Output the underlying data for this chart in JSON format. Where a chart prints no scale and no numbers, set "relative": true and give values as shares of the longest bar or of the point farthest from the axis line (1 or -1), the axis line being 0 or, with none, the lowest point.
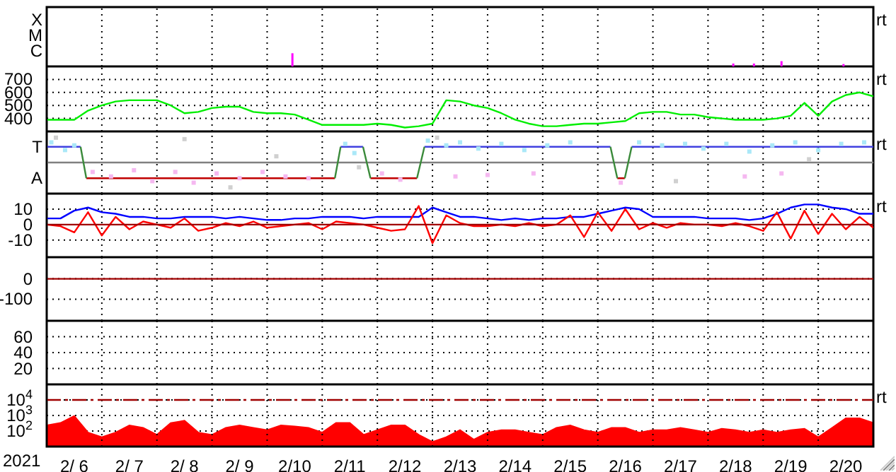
{
  "chart_data": [
    {
      "type": "bar",
      "relative": true,
      "xlim": [
        "2021-02-06T00:00",
        "2021-02-21T00:00"
      ],
      "xticks": [
        {
          "value": "2021-02-07T00:00",
          "label": null
        },
        {
          "value": "2021-02-08T00:00",
          "label": null
        },
        {
          "value": "2021-02-09T00:00",
          "label": null
        },
        {
          "value": "2021-02-10T00:00",
          "label": null
        },
        {
          "value": "2021-02-11T00:00",
          "label": null
        },
        {
          "value": "2021-02-12T00:00",
          "label": null
        },
        {
          "value": "2021-02-13T00:00",
          "label": null
        },
        {
          "value": "2021-02-14T00:00",
          "label": null
        },
        {
          "value": "2021-02-15T00:00",
          "label": null
        },
        {
          "value": "2021-02-16T00:00",
          "label": null
        },
        {
          "value": "2021-02-17T00:00",
          "label": null
        },
        {
          "value": "2021-02-18T00:00",
          "label": null
        },
        {
          "value": "2021-02-19T00:00",
          "label": null
        },
        {
          "value": "2021-02-20T00:00",
          "label": null
        }
      ],
      "grid": "x",
      "tick_labels": "y",
      "annotations": [
        "rt",
        "X",
        "M",
        "C"
      ],
      "series": [
        {
          "color": "#ff00ff",
          "x": [
            "2021-02-10T11:00",
            "2021-02-18T11:00",
            "2021-02-18T20:00",
            "2021-02-19T08:00",
            "2021-02-20T11:00"
          ],
          "values": [
            1,
            0.22,
            0.22,
            0.4,
            0.18
          ]
        }
      ]
    },
    {
      "type": "line",
      "ylim": [
        300,
        800
      ],
      "yticks": [
        400,
        500,
        600,
        700
      ],
      "xlim": [
        "2021-02-06T00:00",
        "2021-02-21T00:00"
      ],
      "xticks": [
        {
          "value": "2021-02-07T00:00",
          "label": null
        },
        {
          "value": "2021-02-08T00:00",
          "label": null
        },
        {
          "value": "2021-02-09T00:00",
          "label": null
        },
        {
          "value": "2021-02-10T00:00",
          "label": null
        },
        {
          "value": "2021-02-11T00:00",
          "label": null
        },
        {
          "value": "2021-02-12T00:00",
          "label": null
        },
        {
          "value": "2021-02-13T00:00",
          "label": null
        },
        {
          "value": "2021-02-14T00:00",
          "label": null
        },
        {
          "value": "2021-02-15T00:00",
          "label": null
        },
        {
          "value": "2021-02-16T00:00",
          "label": null
        },
        {
          "value": "2021-02-17T00:00",
          "label": null
        },
        {
          "value": "2021-02-18T00:00",
          "label": null
        },
        {
          "value": "2021-02-19T00:00",
          "label": null
        },
        {
          "value": "2021-02-20T00:00",
          "label": null
        }
      ],
      "grid": true,
      "tick_labels": "y",
      "annotations": [
        "rt"
      ],
      "x": [
        "2021-02-06T00:00",
        "2021-02-06T06:00",
        "2021-02-06T12:00",
        "2021-02-06T18:00",
        "2021-02-07T00:00",
        "2021-02-07T06:00",
        "2021-02-07T12:00",
        "2021-02-07T18:00",
        "2021-02-08T00:00",
        "2021-02-08T06:00",
        "2021-02-08T12:00",
        "2021-02-08T18:00",
        "2021-02-09T00:00",
        "2021-02-09T06:00",
        "2021-02-09T12:00",
        "2021-02-09T18:00",
        "2021-02-10T00:00",
        "2021-02-10T06:00",
        "2021-02-10T12:00",
        "2021-02-10T18:00",
        "2021-02-11T00:00",
        "2021-02-11T06:00",
        "2021-02-11T12:00",
        "2021-02-11T18:00",
        "2021-02-12T00:00",
        "2021-02-12T06:00",
        "2021-02-12T12:00",
        "2021-02-12T18:00",
        "2021-02-13T00:00",
        "2021-02-13T06:00",
        "2021-02-13T12:00",
        "2021-02-13T18:00",
        "2021-02-14T00:00",
        "2021-02-14T06:00",
        "2021-02-14T12:00",
        "2021-02-14T18:00",
        "2021-02-15T00:00",
        "2021-02-15T06:00",
        "2021-02-15T12:00",
        "2021-02-15T18:00",
        "2021-02-16T00:00",
        "2021-02-16T06:00",
        "2021-02-16T12:00",
        "2021-02-16T18:00",
        "2021-02-17T00:00",
        "2021-02-17T06:00",
        "2021-02-17T12:00",
        "2021-02-17T18:00",
        "2021-02-18T00:00",
        "2021-02-18T06:00",
        "2021-02-18T12:00",
        "2021-02-18T18:00",
        "2021-02-19T00:00",
        "2021-02-19T06:00",
        "2021-02-19T12:00",
        "2021-02-19T18:00",
        "2021-02-20T00:00",
        "2021-02-20T06:00",
        "2021-02-20T12:00",
        "2021-02-20T18:00",
        "2021-02-21T00:00"
      ],
      "series": [
        {
          "color": "#00ee00",
          "values": [
            390,
            390,
            390,
            460,
            500,
            530,
            540,
            540,
            540,
            500,
            440,
            450,
            480,
            490,
            490,
            450,
            440,
            440,
            430,
            390,
            350,
            350,
            350,
            350,
            360,
            350,
            330,
            340,
            360,
            540,
            530,
            500,
            480,
            440,
            390,
            360,
            340,
            340,
            350,
            360,
            360,
            370,
            380,
            440,
            450,
            450,
            430,
            430,
            410,
            400,
            390,
            390,
            390,
            400,
            420,
            520,
            420,
            530,
            580,
            600,
            570
          ]
        }
      ]
    },
    {
      "type": "line",
      "relative": true,
      "xlim": [
        "2021-02-06T00:00",
        "2021-02-21T00:00"
      ],
      "xticks": [
        {
          "value": "2021-02-07T00:00",
          "label": null
        },
        {
          "value": "2021-02-08T00:00",
          "label": null
        },
        {
          "value": "2021-02-09T00:00",
          "label": null
        },
        {
          "value": "2021-02-10T00:00",
          "label": null
        },
        {
          "value": "2021-02-11T00:00",
          "label": null
        },
        {
          "value": "2021-02-12T00:00",
          "label": null
        },
        {
          "value": "2021-02-13T00:00",
          "label": null
        },
        {
          "value": "2021-02-14T00:00",
          "label": null
        },
        {
          "value": "2021-02-15T00:00",
          "label": null
        },
        {
          "value": "2021-02-16T00:00",
          "label": null
        },
        {
          "value": "2021-02-17T00:00",
          "label": null
        },
        {
          "value": "2021-02-18T00:00",
          "label": null
        },
        {
          "value": "2021-02-19T00:00",
          "label": null
        },
        {
          "value": "2021-02-20T00:00",
          "label": null
        }
      ],
      "grid": "x",
      "tick_labels": "y",
      "annotations": [
        "rt",
        "T",
        "A"
      ],
      "series": [
        {
          "type": "scatter",
          "color": "#d0d0d0",
          "x": [
            "2021-02-06T04:00",
            "2021-02-08T12:00",
            "2021-02-09T08:00",
            "2021-02-10T04:00",
            "2021-02-11T16:00",
            "2021-02-13T02:00",
            "2021-02-17T10:00",
            "2021-02-19T20:00"
          ],
          "values": [
            1,
            0.94,
            -1,
            0.25,
            -0.19,
            1,
            -0.75,
            0.13
          ]
        },
        {
          "type": "scatter",
          "color": "#aae8f8",
          "x": [
            "2021-02-06T02:00",
            "2021-02-06T08:00",
            "2021-02-06T12:00",
            "2021-02-11T10:00",
            "2021-02-11T14:00",
            "2021-02-12T22:00",
            "2021-02-13T06:00",
            "2021-02-13T12:00",
            "2021-02-13T20:00",
            "2021-02-14T06:00",
            "2021-02-14T16:00",
            "2021-02-15T02:00",
            "2021-02-15T12:00",
            "2021-02-16T18:00",
            "2021-02-17T04:00",
            "2021-02-17T14:00",
            "2021-02-17T22:00",
            "2021-02-18T08:00",
            "2021-02-18T18:00",
            "2021-02-19T04:00",
            "2021-02-19T14:00",
            "2021-02-20T00:00",
            "2021-02-20T10:00",
            "2021-02-20T20:00"
          ],
          "values": [
            0.81,
            0.5,
            0.69,
            0.75,
            0.38,
            0.88,
            0.69,
            0.81,
            0.56,
            0.75,
            0.5,
            0.69,
            0.81,
            0.81,
            0.69,
            0.75,
            0.56,
            0.75,
            0.44,
            0.69,
            0.81,
            0.5,
            0.75,
            0.81
          ]
        },
        {
          "type": "scatter",
          "color": "#f5b8f0",
          "x": [
            "2021-02-06T20:00",
            "2021-02-07T04:00",
            "2021-02-07T14:00",
            "2021-02-07T22:00",
            "2021-02-08T08:00",
            "2021-02-08T16:00",
            "2021-02-09T02:00",
            "2021-02-09T12:00",
            "2021-02-09T22:00",
            "2021-02-10T08:00",
            "2021-02-10T18:00",
            "2021-02-12T02:00",
            "2021-02-12T10:00",
            "2021-02-13T10:00",
            "2021-02-14T00:00",
            "2021-02-14T20:00",
            "2021-02-16T10:00",
            "2021-02-18T16:00",
            "2021-02-19T08:00"
          ],
          "values": [
            -0.38,
            -0.56,
            -0.31,
            -0.75,
            -0.38,
            -0.81,
            -0.44,
            -0.63,
            -0.38,
            -0.56,
            -0.63,
            -0.44,
            -0.69,
            -0.56,
            -0.5,
            -0.44,
            -0.81,
            -0.56,
            -0.44
          ]
        },
        {
          "color": "#4040e0",
          "x": [
            "2021-02-06T00:00",
            "2021-02-06T14:45",
            "2021-02-06T15:00",
            "2021-02-11T08:00",
            "2021-02-11T17:45",
            "2021-02-11T18:00",
            "2021-02-12T20:30",
            "2021-02-16T05:30",
            "2021-02-16T06:00",
            "2021-02-16T14:45",
            "2021-02-21T00:00"
          ],
          "values": [
            0.63,
            0.63,
            null,
            0.63,
            0.63,
            null,
            0.63,
            0.63,
            null,
            0.63,
            0.63
          ]
        },
        {
          "color": "#c00000",
          "x": [
            "2021-02-06T17:15",
            "2021-02-11T05:30",
            "2021-02-11T06:00",
            "2021-02-11T21:00",
            "2021-02-12T17:15",
            "2021-02-12T18:00",
            "2021-02-16T08:30",
            "2021-02-16T11:45"
          ],
          "values": [
            -0.63,
            -0.63,
            null,
            -0.63,
            -0.63,
            null,
            -0.63,
            -0.63
          ]
        },
        {
          "color": "#3a8a3a",
          "x": [
            "2021-02-06T14:45",
            "2021-02-06T17:15",
            "2021-02-07T00:00",
            "2021-02-11T05:30",
            "2021-02-11T08:00",
            "2021-02-11T12:00",
            "2021-02-11T17:45",
            "2021-02-11T21:00",
            "2021-02-12T00:00",
            "2021-02-12T17:15",
            "2021-02-12T20:30",
            "2021-02-14T00:00",
            "2021-02-16T05:30",
            "2021-02-16T08:30",
            "2021-02-16T10:00",
            "2021-02-16T11:45",
            "2021-02-16T14:45"
          ],
          "values": [
            0.63,
            -0.63,
            null,
            -0.63,
            0.63,
            null,
            0.63,
            -0.63,
            null,
            -0.63,
            0.63,
            null,
            0.63,
            -0.63,
            null,
            -0.63,
            0.63
          ]
        }
      ]
    },
    {
      "type": "line",
      "ylim": [
        -21,
        20
      ],
      "yticks": [
        10,
        0,
        -10
      ],
      "xlim": [
        "2021-02-06T00:00",
        "2021-02-21T00:00"
      ],
      "xticks": [
        {
          "value": "2021-02-07T00:00",
          "label": null
        },
        {
          "value": "2021-02-08T00:00",
          "label": null
        },
        {
          "value": "2021-02-09T00:00",
          "label": null
        },
        {
          "value": "2021-02-10T00:00",
          "label": null
        },
        {
          "value": "2021-02-11T00:00",
          "label": null
        },
        {
          "value": "2021-02-12T00:00",
          "label": null
        },
        {
          "value": "2021-02-13T00:00",
          "label": null
        },
        {
          "value": "2021-02-14T00:00",
          "label": null
        },
        {
          "value": "2021-02-15T00:00",
          "label": null
        },
        {
          "value": "2021-02-16T00:00",
          "label": null
        },
        {
          "value": "2021-02-17T00:00",
          "label": null
        },
        {
          "value": "2021-02-18T00:00",
          "label": null
        },
        {
          "value": "2021-02-19T00:00",
          "label": null
        },
        {
          "value": "2021-02-20T00:00",
          "label": null
        }
      ],
      "grid": true,
      "tick_labels": "y",
      "annotations": [
        "rt"
      ],
      "ref_lines": [
        {
          "axis": "y",
          "value": 0,
          "label": null,
          "color": "#a00000"
        }
      ],
      "x": [
        "2021-02-06T00:00",
        "2021-02-06T06:00",
        "2021-02-06T12:00",
        "2021-02-06T18:00",
        "2021-02-07T00:00",
        "2021-02-07T06:00",
        "2021-02-07T12:00",
        "2021-02-07T18:00",
        "2021-02-08T00:00",
        "2021-02-08T06:00",
        "2021-02-08T12:00",
        "2021-02-08T18:00",
        "2021-02-09T00:00",
        "2021-02-09T06:00",
        "2021-02-09T12:00",
        "2021-02-09T18:00",
        "2021-02-10T00:00",
        "2021-02-10T06:00",
        "2021-02-10T12:00",
        "2021-02-10T18:00",
        "2021-02-11T00:00",
        "2021-02-11T06:00",
        "2021-02-11T12:00",
        "2021-02-11T18:00",
        "2021-02-12T00:00",
        "2021-02-12T06:00",
        "2021-02-12T12:00",
        "2021-02-12T18:00",
        "2021-02-13T00:00",
        "2021-02-13T06:00",
        "2021-02-13T12:00",
        "2021-02-13T18:00",
        "2021-02-14T00:00",
        "2021-02-14T06:00",
        "2021-02-14T12:00",
        "2021-02-14T18:00",
        "2021-02-15T00:00",
        "2021-02-15T06:00",
        "2021-02-15T12:00",
        "2021-02-15T18:00",
        "2021-02-16T00:00",
        "2021-02-16T06:00",
        "2021-02-16T12:00",
        "2021-02-16T18:00",
        "2021-02-17T00:00",
        "2021-02-17T06:00",
        "2021-02-17T12:00",
        "2021-02-17T18:00",
        "2021-02-18T00:00",
        "2021-02-18T06:00",
        "2021-02-18T12:00",
        "2021-02-18T18:00",
        "2021-02-19T00:00",
        "2021-02-19T06:00",
        "2021-02-19T12:00",
        "2021-02-19T18:00",
        "2021-02-20T00:00",
        "2021-02-20T06:00",
        "2021-02-20T12:00",
        "2021-02-20T18:00",
        "2021-02-21T00:00"
      ],
      "series": [
        {
          "color": "#0000ff",
          "values": [
            4,
            4,
            9,
            11,
            8,
            7,
            5,
            5,
            4,
            4,
            5,
            5,
            5,
            4,
            5,
            4,
            3,
            3,
            4,
            4,
            5,
            5,
            5,
            4,
            5,
            5,
            5,
            5,
            11,
            8,
            5,
            5,
            4,
            3,
            4,
            3,
            4,
            4,
            5,
            5,
            7,
            9,
            11,
            10,
            5,
            5,
            5,
            5,
            4,
            4,
            4,
            3,
            4,
            7,
            11,
            13,
            13,
            11,
            10,
            7,
            7
          ]
        },
        {
          "color": "#ff0000",
          "values": [
            0,
            -1,
            -5,
            8,
            -7,
            5,
            -3,
            2,
            0,
            -2,
            4,
            -4,
            -2,
            1,
            -1,
            2,
            -2,
            -1,
            0,
            1,
            -3,
            2,
            1,
            0,
            -2,
            -4,
            -3,
            12,
            -12,
            6,
            1,
            -1,
            -1,
            0,
            -1,
            1,
            -1,
            0,
            6,
            -8,
            8,
            -4,
            10,
            -3,
            1,
            -2,
            1,
            0,
            0,
            -1,
            1,
            -1,
            -4,
            8,
            -9,
            9,
            -6,
            7,
            -3,
            5,
            -2
          ]
        }
      ]
    },
    {
      "type": "line",
      "ylim": [
        -206,
        106
      ],
      "yticks": [
        0,
        -100
      ],
      "xlim": [
        "2021-02-06T00:00",
        "2021-02-21T00:00"
      ],
      "xticks": [
        {
          "value": "2021-02-07T00:00",
          "label": null
        },
        {
          "value": "2021-02-08T00:00",
          "label": null
        },
        {
          "value": "2021-02-09T00:00",
          "label": null
        },
        {
          "value": "2021-02-10T00:00",
          "label": null
        },
        {
          "value": "2021-02-11T00:00",
          "label": null
        },
        {
          "value": "2021-02-12T00:00",
          "label": null
        },
        {
          "value": "2021-02-13T00:00",
          "label": null
        },
        {
          "value": "2021-02-14T00:00",
          "label": null
        },
        {
          "value": "2021-02-15T00:00",
          "label": null
        },
        {
          "value": "2021-02-16T00:00",
          "label": null
        },
        {
          "value": "2021-02-17T00:00",
          "label": null
        },
        {
          "value": "2021-02-18T00:00",
          "label": null
        },
        {
          "value": "2021-02-19T00:00",
          "label": null
        },
        {
          "value": "2021-02-20T00:00",
          "label": null
        }
      ],
      "grid": true,
      "tick_labels": "y",
      "ref_lines": [
        {
          "axis": "y",
          "value": 0,
          "label": null,
          "color": "#a00000"
        }
      ]
    },
    {
      "type": "line",
      "ylim": [
        0,
        80
      ],
      "yticks": [
        60,
        40,
        20
      ],
      "xlim": [
        "2021-02-06T00:00",
        "2021-02-21T00:00"
      ],
      "xticks": [
        {
          "value": "2021-02-07T00:00",
          "label": null
        },
        {
          "value": "2021-02-08T00:00",
          "label": null
        },
        {
          "value": "2021-02-09T00:00",
          "label": null
        },
        {
          "value": "2021-02-10T00:00",
          "label": null
        },
        {
          "value": "2021-02-11T00:00",
          "label": null
        },
        {
          "value": "2021-02-12T00:00",
          "label": null
        },
        {
          "value": "2021-02-13T00:00",
          "label": null
        },
        {
          "value": "2021-02-14T00:00",
          "label": null
        },
        {
          "value": "2021-02-15T00:00",
          "label": null
        },
        {
          "value": "2021-02-16T00:00",
          "label": null
        },
        {
          "value": "2021-02-17T00:00",
          "label": null
        },
        {
          "value": "2021-02-18T00:00",
          "label": null
        },
        {
          "value": "2021-02-19T00:00",
          "label": null
        },
        {
          "value": "2021-02-20T00:00",
          "label": null
        }
      ],
      "grid": true,
      "tick_labels": "y"
    },
    {
      "type": "area",
      "log": "y",
      "ylim": [
        10,
        100000
      ],
      "yticks": [
        {
          "value": 100,
          "label": "10$^{2}$"
        },
        {
          "value": 1000,
          "label": "10$^{3}$"
        },
        {
          "value": 10000,
          "label": "10$^{4}$"
        }
      ],
      "xlim": [
        "2021-02-06T00:00",
        "2021-02-21T00:00"
      ],
      "xticks": [
        {
          "value": "2021-02-06T12:00",
          "label": "2/ 6"
        },
        {
          "value": "2021-02-07T00:00",
          "label": null
        },
        {
          "value": "2021-02-07T12:00",
          "label": "2/ 7"
        },
        {
          "value": "2021-02-08T00:00",
          "label": null
        },
        {
          "value": "2021-02-08T12:00",
          "label": "2/ 8"
        },
        {
          "value": "2021-02-09T00:00",
          "label": null
        },
        {
          "value": "2021-02-09T12:00",
          "label": "2/ 9"
        },
        {
          "value": "2021-02-10T00:00",
          "label": null
        },
        {
          "value": "2021-02-10T12:00",
          "label": "2/10"
        },
        {
          "value": "2021-02-11T00:00",
          "label": null
        },
        {
          "value": "2021-02-11T12:00",
          "label": "2/11"
        },
        {
          "value": "2021-02-12T00:00",
          "label": null
        },
        {
          "value": "2021-02-12T12:00",
          "label": "2/12"
        },
        {
          "value": "2021-02-13T00:00",
          "label": null
        },
        {
          "value": "2021-02-13T12:00",
          "label": "2/13"
        },
        {
          "value": "2021-02-14T00:00",
          "label": null
        },
        {
          "value": "2021-02-14T12:00",
          "label": "2/14"
        },
        {
          "value": "2021-02-15T00:00",
          "label": null
        },
        {
          "value": "2021-02-15T12:00",
          "label": "2/15"
        },
        {
          "value": "2021-02-16T00:00",
          "label": null
        },
        {
          "value": "2021-02-16T12:00",
          "label": "2/16"
        },
        {
          "value": "2021-02-17T00:00",
          "label": null
        },
        {
          "value": "2021-02-17T12:00",
          "label": "2/17"
        },
        {
          "value": "2021-02-18T00:00",
          "label": null
        },
        {
          "value": "2021-02-18T12:00",
          "label": "2/18"
        },
        {
          "value": "2021-02-19T00:00",
          "label": null
        },
        {
          "value": "2021-02-19T12:00",
          "label": "2/19"
        },
        {
          "value": "2021-02-20T00:00",
          "label": null
        },
        {
          "value": "2021-02-20T12:00",
          "label": "2/20"
        }
      ],
      "grid": true,
      "annotations": [
        "rt"
      ],
      "xlabel": "2021",
      "ref_lines": [
        {
          "axis": "y",
          "value": 10000,
          "label": null,
          "color": "#a00000",
          "line_style": "dashed"
        }
      ],
      "x": [
        "2021-02-06T00:00",
        "2021-02-06T06:00",
        "2021-02-06T12:00",
        "2021-02-06T18:00",
        "2021-02-07T00:00",
        "2021-02-07T06:00",
        "2021-02-07T12:00",
        "2021-02-07T18:00",
        "2021-02-08T00:00",
        "2021-02-08T06:00",
        "2021-02-08T12:00",
        "2021-02-08T18:00",
        "2021-02-09T00:00",
        "2021-02-09T06:00",
        "2021-02-09T12:00",
        "2021-02-09T18:00",
        "2021-02-10T00:00",
        "2021-02-10T06:00",
        "2021-02-10T12:00",
        "2021-02-10T18:00",
        "2021-02-11T00:00",
        "2021-02-11T06:00",
        "2021-02-11T12:00",
        "2021-02-11T18:00",
        "2021-02-12T00:00",
        "2021-02-12T06:00",
        "2021-02-12T12:00",
        "2021-02-12T18:00",
        "2021-02-13T00:00",
        "2021-02-13T06:00",
        "2021-02-13T12:00",
        "2021-02-13T18:00",
        "2021-02-14T00:00",
        "2021-02-14T06:00",
        "2021-02-14T12:00",
        "2021-02-14T18:00",
        "2021-02-15T00:00",
        "2021-02-15T06:00",
        "2021-02-15T12:00",
        "2021-02-15T18:00",
        "2021-02-16T00:00",
        "2021-02-16T06:00",
        "2021-02-16T12:00",
        "2021-02-16T18:00",
        "2021-02-17T00:00",
        "2021-02-17T06:00",
        "2021-02-17T12:00",
        "2021-02-17T18:00",
        "2021-02-18T00:00",
        "2021-02-18T06:00",
        "2021-02-18T12:00",
        "2021-02-18T18:00",
        "2021-02-19T00:00",
        "2021-02-19T06:00",
        "2021-02-19T12:00",
        "2021-02-19T18:00",
        "2021-02-20T00:00",
        "2021-02-20T06:00",
        "2021-02-20T12:00",
        "2021-02-20T18:00",
        "2021-02-21T00:00"
      ],
      "series": [
        {
          "color": "#ff0000",
          "values": [
            230,
            330,
            930,
            80,
            40,
            80,
            230,
            160,
            57,
            330,
            460,
            80,
            57,
            160,
            230,
            160,
            115,
            230,
            200,
            160,
            80,
            330,
            330,
            57,
            115,
            230,
            230,
            57,
            20,
            40,
            115,
            28,
            80,
            115,
            115,
            80,
            57,
            160,
            230,
            115,
            80,
            160,
            160,
            80,
            115,
            115,
            160,
            115,
            80,
            140,
            115,
            80,
            115,
            80,
            115,
            140,
            40,
            160,
            660,
            660,
            330
          ]
        }
      ]
    }
  ]
}
